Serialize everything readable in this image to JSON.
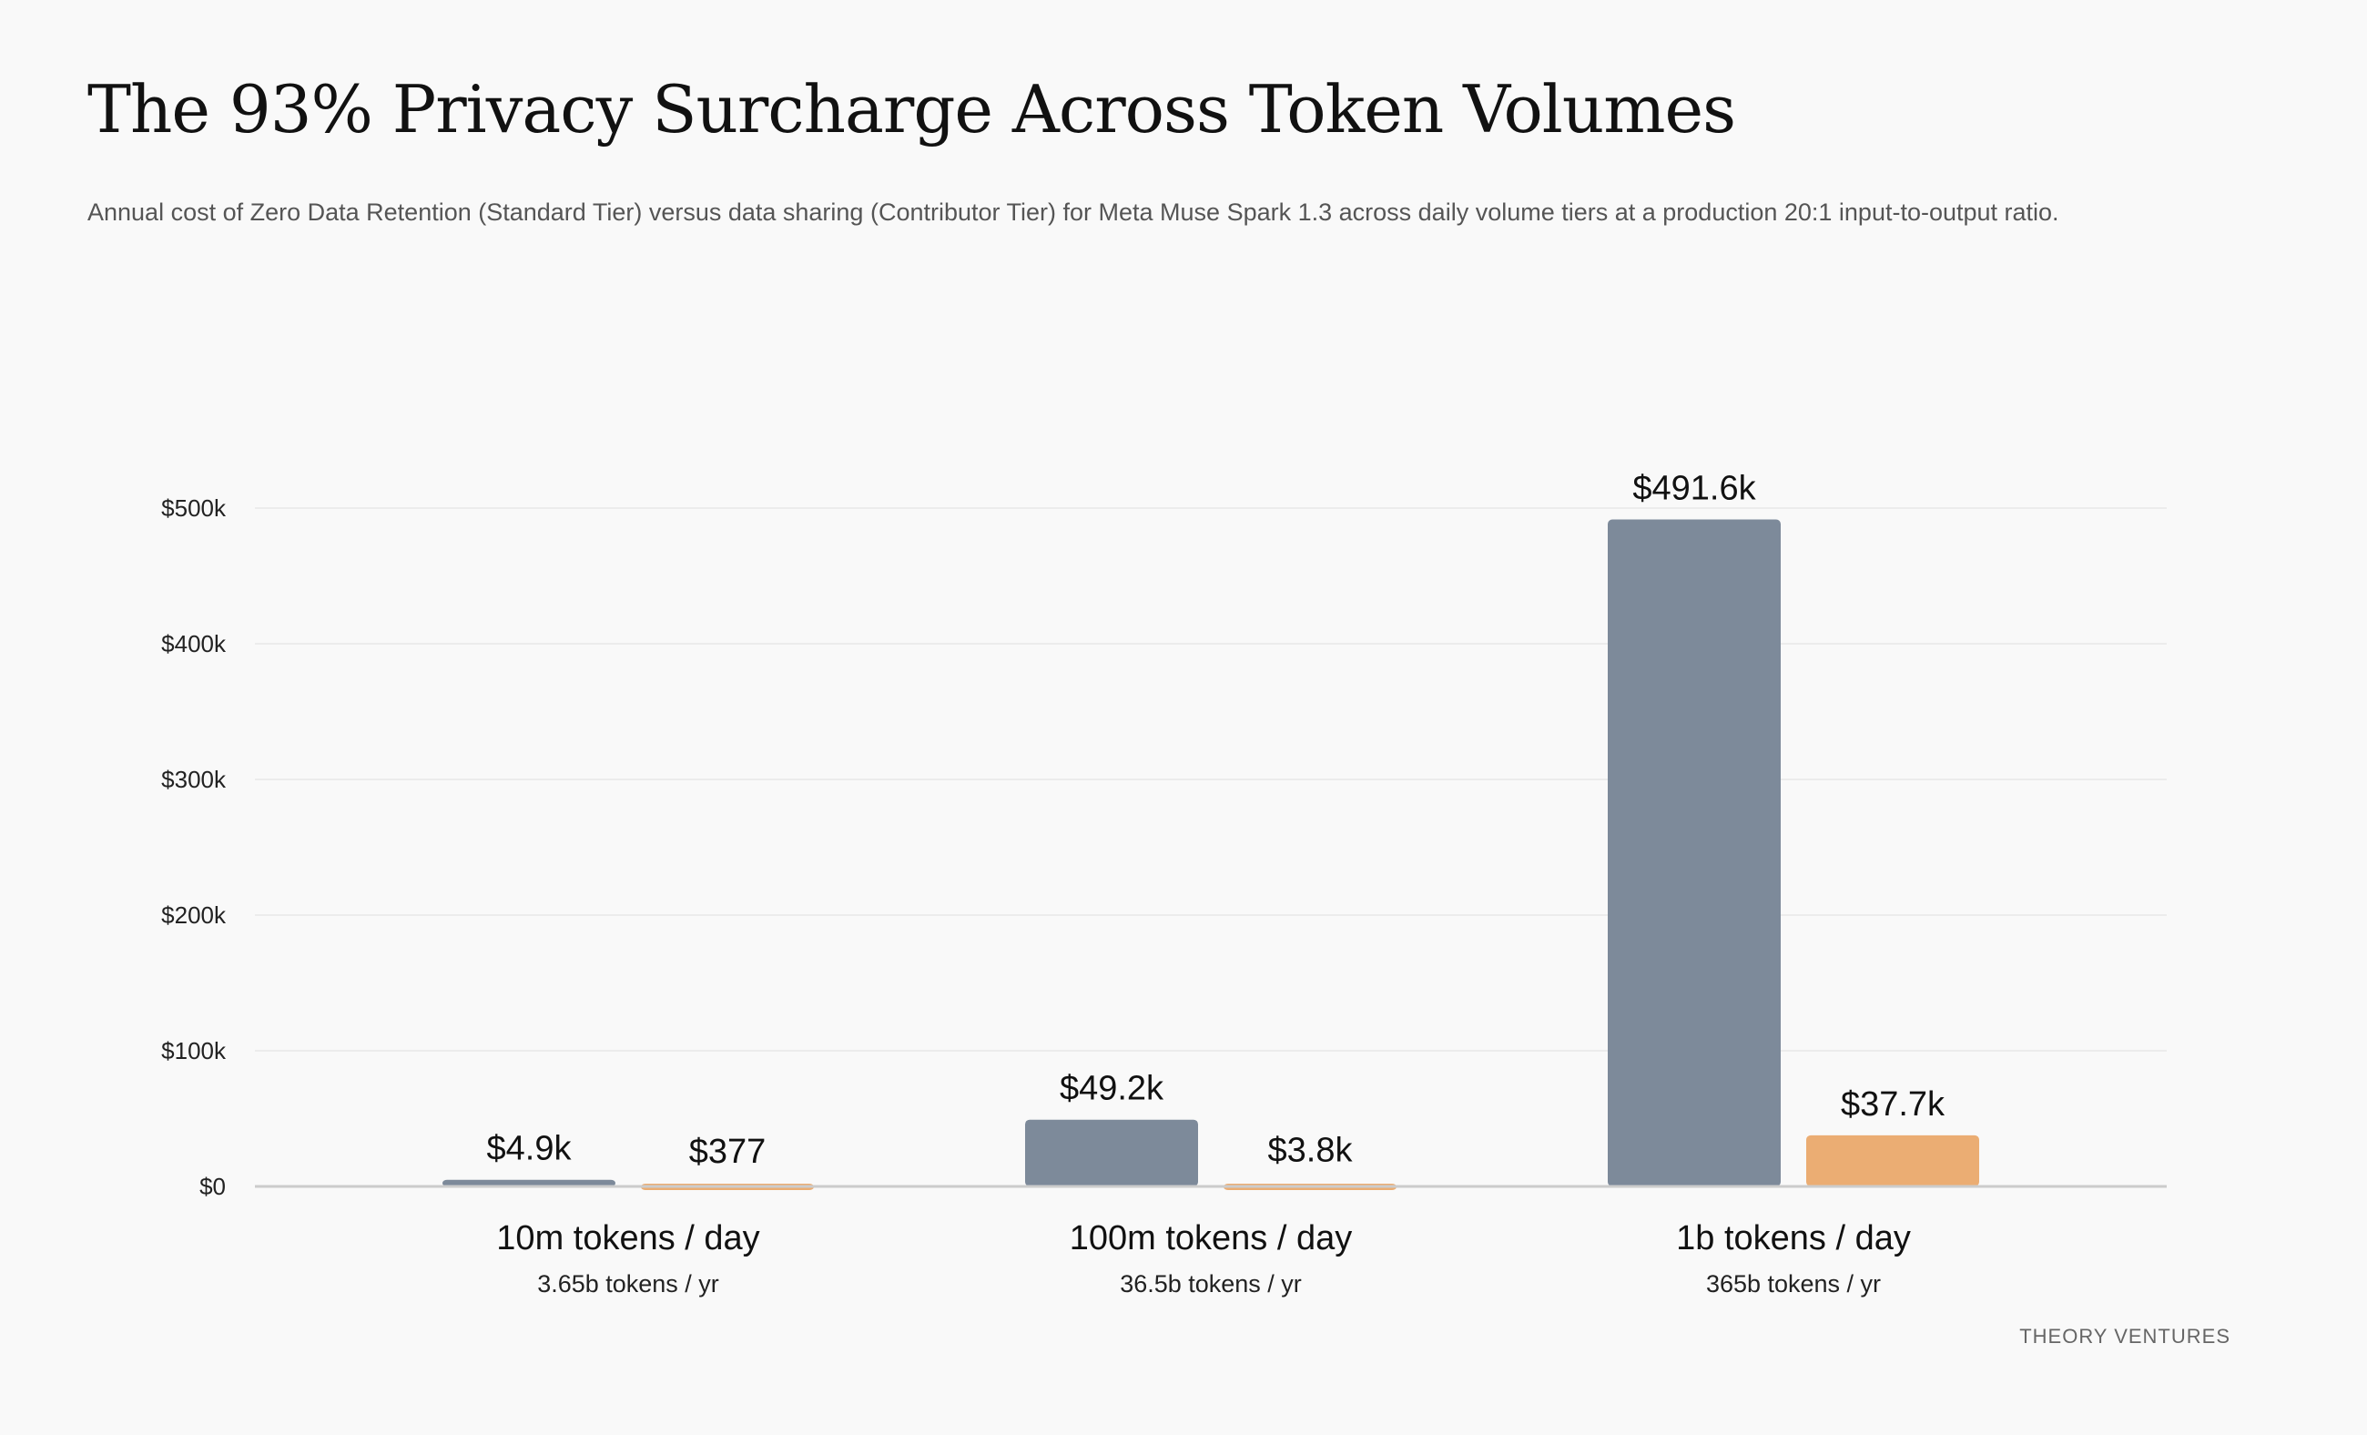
{
  "title": "The 93% Privacy Surcharge Across Token Volumes",
  "subtitle": "Annual cost of Zero Data Retention (Standard Tier) versus data sharing (Contributor Tier) for Meta Muse Spark 1.3 across daily volume tiers at a production 20:1 input-to-output ratio.",
  "footer": "THEORY VENTURES",
  "chart_data": {
    "type": "bar",
    "categories": [
      "10m tokens / day",
      "100m tokens / day",
      "1b tokens / day"
    ],
    "category_sublabels": [
      "3.65b tokens / yr",
      "36.5b tokens / yr",
      "365b tokens / yr"
    ],
    "series": [
      {
        "color": "#7d8a9a",
        "values": [
          4900,
          49200,
          491600
        ],
        "labels": [
          "$4.9k",
          "$49.2k",
          "$491.6k"
        ]
      },
      {
        "color": "#ebad73",
        "values": [
          377,
          3800,
          37700
        ],
        "labels": [
          "$377",
          "$3.8k",
          "$37.7k"
        ]
      }
    ],
    "yticks": [
      0,
      100000,
      200000,
      300000,
      400000,
      500000
    ],
    "ytick_labels": [
      "$0",
      "$100k",
      "$200k",
      "$300k",
      "$400k",
      "$500k"
    ],
    "ylim": [
      0,
      500000
    ],
    "grid": true,
    "legend": "none"
  }
}
